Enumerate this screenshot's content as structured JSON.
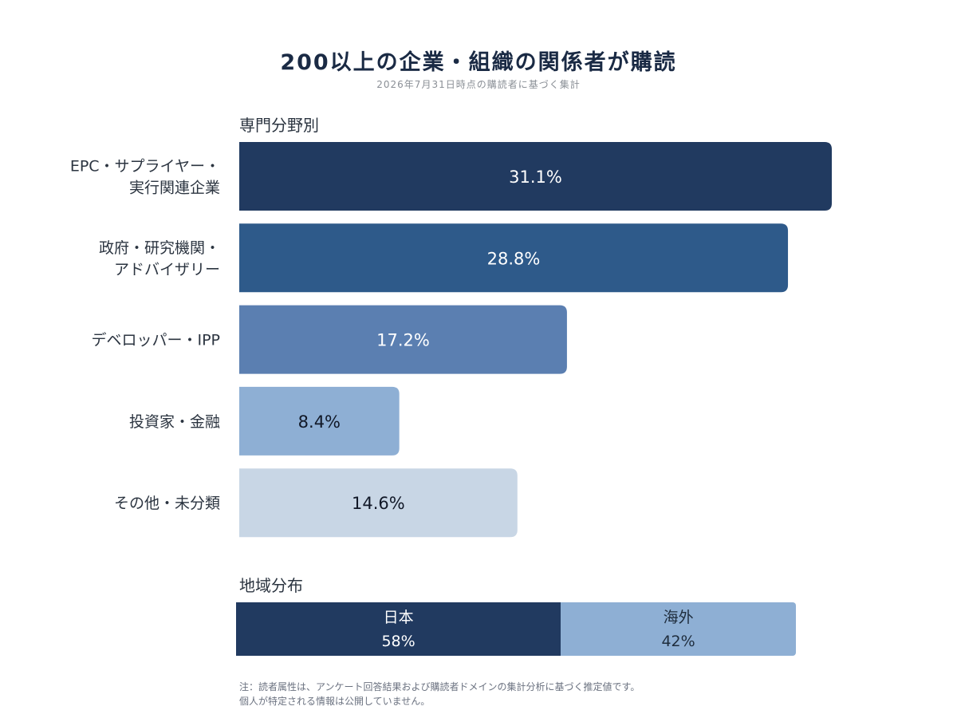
{
  "header": {
    "title": "200以上の企業・組織の関係者が購読",
    "subtitle": "2026年7月31日時点の購読者に基づく集計"
  },
  "sections": {
    "field_label": "専門分野別",
    "region_label": "地域分布"
  },
  "chart_data": [
    {
      "type": "bar",
      "orientation": "horizontal",
      "title": "専門分野別",
      "unit": "%",
      "categories": [
        [
          "EPC・サプライヤー・",
          "実行関連企業"
        ],
        [
          "政府・研究機関・",
          "アドバイザリー"
        ],
        [
          "デベロッパー・IPP"
        ],
        [
          "投資家・金融"
        ],
        [
          "その他・未分類"
        ]
      ],
      "values": [
        31.1,
        28.8,
        17.2,
        8.4,
        14.6
      ],
      "value_labels": [
        "31.1%",
        "28.8%",
        "17.2%",
        "8.4%",
        "14.6%"
      ],
      "colors": [
        "#213a60",
        "#2e5a8a",
        "#5b7fb1",
        "#8eafd4",
        "#c8d6e5"
      ],
      "label_colors": [
        "#ffffff",
        "#ffffff",
        "#ffffff",
        "#111827",
        "#111827"
      ],
      "xlim": [
        0,
        31.1
      ],
      "grid": false
    },
    {
      "type": "bar",
      "orientation": "stacked-horizontal",
      "title": "地域分布",
      "unit": "%",
      "segments": [
        {
          "name": "日本",
          "value": 58,
          "label": "58%",
          "color": "#213a60",
          "text_color": "#ffffff"
        },
        {
          "name": "海外",
          "value": 42,
          "label": "42%",
          "color": "#8eafd4",
          "text_color": "#1f2d3d"
        }
      ]
    }
  ],
  "footer": {
    "note_line1": "注：読者属性は、アンケート回答結果および購読者ドメインの集計分析に基づく推定値です。",
    "note_line2": "個人が特定される情報は公開していません。"
  }
}
